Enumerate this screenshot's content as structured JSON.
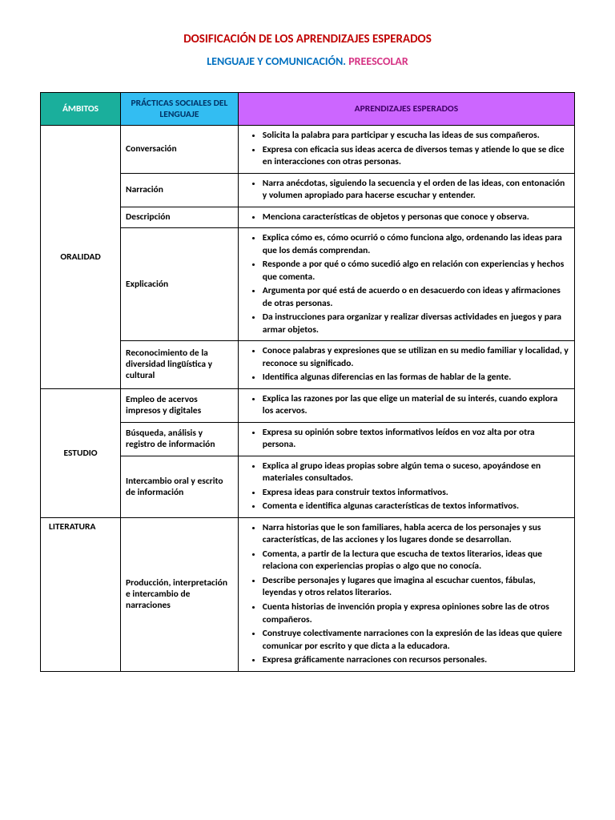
{
  "title": "DOSIFICACIÓN DE LOS APRENDIZAJES ESPERADOS",
  "subtitle_part1": "LENGUAJE Y COMUNICACIÓN.",
  "subtitle_part2": " PREESCOLAR",
  "headers": {
    "ambitos": "ÁMBITOS",
    "practicas": "PRÁCTICAS SOCIALES DEL LENGUAJE",
    "aprendizajes": "APRENDIZAJES ESPERADOS"
  },
  "colors": {
    "title": "#c00000",
    "sub_blue": "#0070c0",
    "sub_pink": "#d63384",
    "th_ambitos": "#1aaf9c",
    "th_practicas": "#33bdf2",
    "th_aprendizajes": "#cc66ff"
  },
  "sections": [
    {
      "ambito": "ORALIDAD",
      "rows": [
        {
          "practica": "Conversación",
          "items": [
            "Solicita la palabra para participar y escucha las ideas de sus compañeros.",
            "Expresa con eficacia sus ideas acerca de diversos temas y atiende lo que se dice en interacciones con otras personas."
          ]
        },
        {
          "practica": "Narración",
          "items": [
            "Narra anécdotas, siguiendo la secuencia y el orden de las ideas, con entonación y volumen apropiado para hacerse escuchar y entender."
          ]
        },
        {
          "practica": "Descripción",
          "items": [
            "Menciona características de objetos y personas que conoce y observa."
          ]
        },
        {
          "practica": "Explicación",
          "items": [
            "Explica cómo es, cómo ocurrió o cómo funciona algo, ordenando las ideas para que los demás comprendan.",
            "Responde a por qué o cómo sucedió algo en relación con experiencias y hechos que comenta.",
            "Argumenta por qué está de acuerdo o en desacuerdo con ideas y afirmaciones de otras personas.",
            "Da instrucciones para organizar y realizar diversas actividades en juegos y para armar objetos."
          ]
        },
        {
          "practica": "Reconocimiento de la diversidad lingüística y cultural",
          "items": [
            "Conoce palabras y expresiones que se utilizan en su medio familiar y localidad, y reconoce su significado.",
            "Identifica algunas diferencias en las formas de hablar de la gente."
          ]
        }
      ]
    },
    {
      "ambito": "ESTUDIO",
      "rows": [
        {
          "practica": "Empleo de acervos impresos y digitales",
          "items": [
            "Explica las razones por las que elige un material de su interés, cuando explora los acervos."
          ]
        },
        {
          "practica": "Búsqueda, análisis y registro de información",
          "items": [
            "Expresa su opinión sobre textos informativos leídos en voz alta por otra persona."
          ]
        },
        {
          "practica": "Intercambio oral y escrito de información",
          "items": [
            "Explica al grupo ideas propias sobre algún tema o suceso, apoyándose en materiales consultados.",
            "Expresa ideas para construir textos informativos.",
            "Comenta e identifica algunas características de textos informativos."
          ]
        }
      ]
    },
    {
      "ambito": "LITERATURA",
      "ambito_align": "top",
      "rows": [
        {
          "practica": "Producción, interpretación e intercambio de narraciones",
          "items": [
            "Narra historias que le son familiares, habla acerca de los personajes y sus características, de las acciones y los lugares donde se desarrollan.",
            "Comenta, a partir de la lectura que escucha de textos literarios, ideas que relaciona con experiencias propias o algo que no conocía.",
            "Describe personajes y lugares que imagina al escuchar cuentos, fábulas, leyendas y otros relatos literarios.",
            "Cuenta historias de invención propia y expresa opiniones sobre las de otros compañeros.",
            "Construye colectivamente narraciones con la expresión de las ideas que quiere comunicar por escrito y que dicta a la educadora.",
            "Expresa gráficamente narraciones con recursos personales."
          ]
        }
      ]
    }
  ]
}
